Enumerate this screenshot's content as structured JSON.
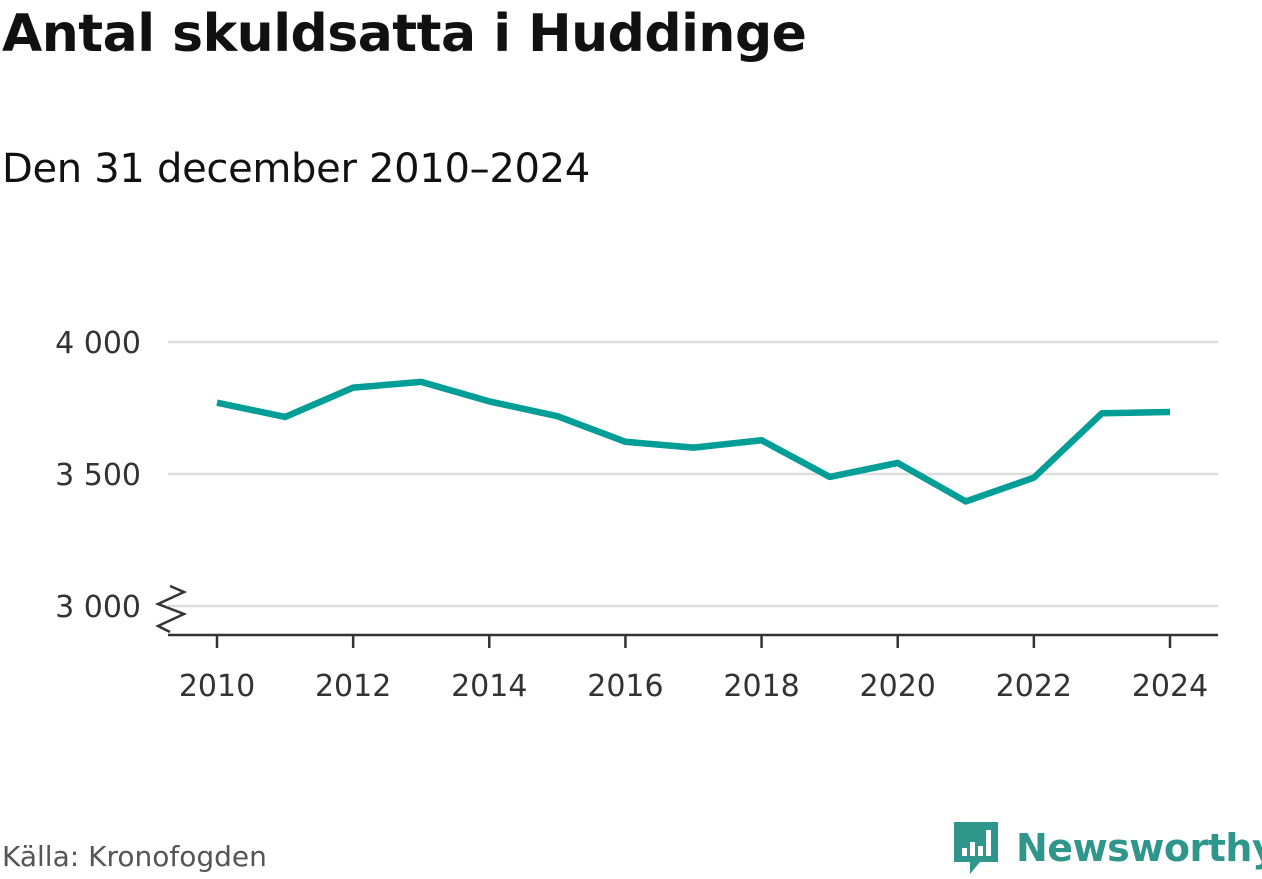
{
  "header": {
    "title": "Antal skuldsatta i Huddinge",
    "subtitle": "Den 31 december 2010–2024"
  },
  "footer": {
    "source": "Källa: Kronofogden",
    "brand": "Newsworthy",
    "brand_icon": "newsworthy-logo-icon"
  },
  "colors": {
    "line": "#009e96",
    "brand": "#2f968b",
    "grid": "#dddddd",
    "axis": "#333333",
    "text": "#333333"
  },
  "chart_data": {
    "type": "line",
    "title": "Antal skuldsatta i Huddinge",
    "subtitle": "Den 31 december 2010–2024",
    "x": [
      2010,
      2011,
      2012,
      2013,
      2014,
      2015,
      2016,
      2017,
      2018,
      2019,
      2020,
      2021,
      2022,
      2023,
      2024
    ],
    "series": [
      {
        "values": [
          3770,
          3716,
          3827,
          3849,
          3775,
          3719,
          3622,
          3600,
          3628,
          3489,
          3542,
          3396,
          3486,
          3730,
          3735
        ]
      }
    ],
    "x_ticks": [
      "2010",
      "2012",
      "2014",
      "2016",
      "2018",
      "2020",
      "2022",
      "2024"
    ],
    "y_ticks": [
      {
        "value": 3000,
        "label": "3 000"
      },
      {
        "value": 3500,
        "label": "3 500"
      },
      {
        "value": 4000,
        "label": "4 000"
      }
    ],
    "xlim": [
      2010,
      2024
    ],
    "ylim": [
      3000,
      4000
    ],
    "y_axis_break": true,
    "grid": "horizontal",
    "legend": "none"
  }
}
